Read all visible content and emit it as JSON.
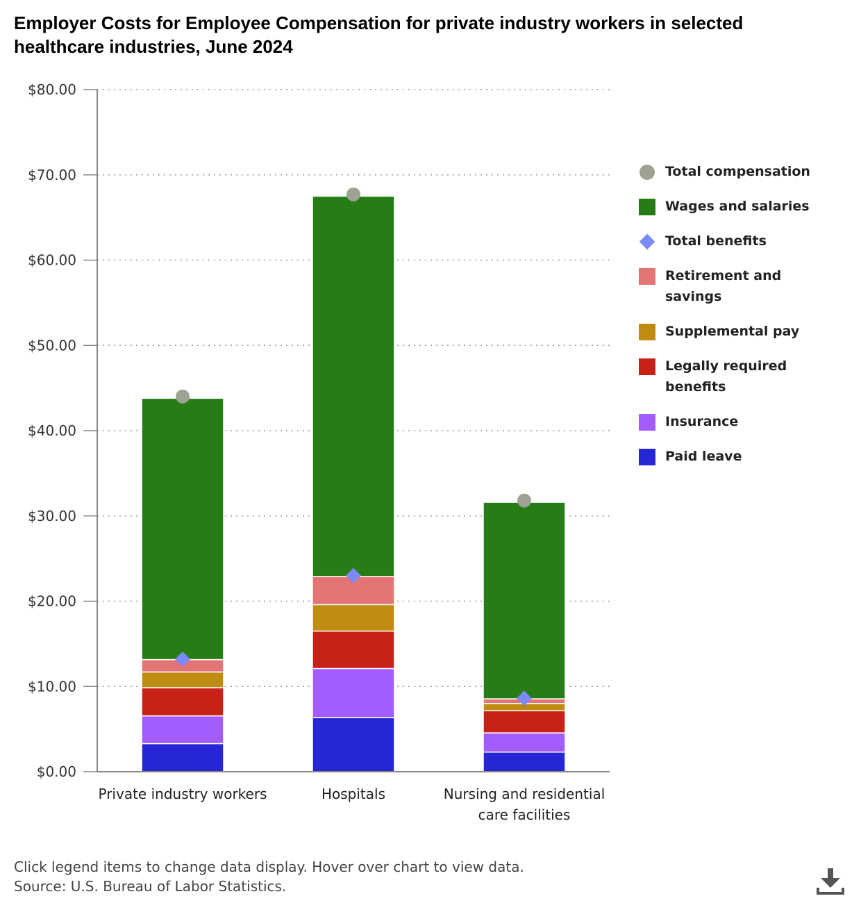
{
  "chart_data": {
    "type": "bar",
    "stacked": true,
    "title": "Employer Costs for Employee Compensation for private industry workers in selected healthcare industries, June 2024",
    "categories": [
      "Private industry workers",
      "Hospitals",
      "Nursing and residential care facilities"
    ],
    "ylim": [
      0,
      80
    ],
    "yticks": [
      0,
      10,
      20,
      30,
      40,
      50,
      60,
      70,
      80
    ],
    "ytick_labels": [
      "$0.00",
      "$10.00",
      "$20.00",
      "$30.00",
      "$40.00",
      "$50.00",
      "$60.00",
      "$70.00",
      "$80.00"
    ],
    "grid": "horizontal dotted",
    "legend_position": "right",
    "series": [
      {
        "name": "Paid leave",
        "kind": "bar",
        "color": "#2626d4",
        "values": [
          3.3,
          6.35,
          2.3
        ]
      },
      {
        "name": "Insurance",
        "kind": "bar",
        "color": "#a35cff",
        "values": [
          3.25,
          5.75,
          2.25
        ]
      },
      {
        "name": "Legally required benefits",
        "kind": "bar",
        "color": "#c62218",
        "values": [
          3.3,
          4.4,
          2.6
        ]
      },
      {
        "name": "Supplemental pay",
        "kind": "bar",
        "color": "#bf8b10",
        "values": [
          1.85,
          3.1,
          0.85
        ]
      },
      {
        "name": "Retirement and savings",
        "kind": "bar",
        "color": "#e37575",
        "values": [
          1.45,
          3.3,
          0.55
        ]
      },
      {
        "name": "Wages and salaries",
        "kind": "bar",
        "color": "#267d16",
        "values": [
          30.65,
          44.6,
          23.05
        ]
      },
      {
        "name": "Total benefits",
        "kind": "marker",
        "shape": "diamond",
        "color": "#7b8af8",
        "values": [
          13.2,
          23.0,
          8.6
        ]
      },
      {
        "name": "Total compensation",
        "kind": "marker",
        "shape": "circle",
        "color": "#9ea293",
        "values": [
          44.0,
          67.7,
          31.8
        ]
      }
    ]
  },
  "legend": [
    {
      "label": "Total compensation",
      "shape": "circle",
      "color": "#9ea293"
    },
    {
      "label": "Wages and salaries",
      "shape": "square",
      "color": "#267d16"
    },
    {
      "label": "Total benefits",
      "shape": "diamond",
      "color": "#7b8af8"
    },
    {
      "label": "Retirement and savings",
      "shape": "square",
      "color": "#e37575"
    },
    {
      "label": "Supplemental pay",
      "shape": "square",
      "color": "#bf8b10"
    },
    {
      "label": "Legally required benefits",
      "shape": "square",
      "color": "#c62218"
    },
    {
      "label": "Insurance",
      "shape": "square",
      "color": "#a35cff"
    },
    {
      "label": "Paid leave",
      "shape": "square",
      "color": "#2626d4"
    }
  ],
  "footer": {
    "instructions": "Click legend items to change data display. Hover over chart to view data.",
    "source": "Source: U.S. Bureau of Labor Statistics."
  },
  "download_icon": "download-icon"
}
